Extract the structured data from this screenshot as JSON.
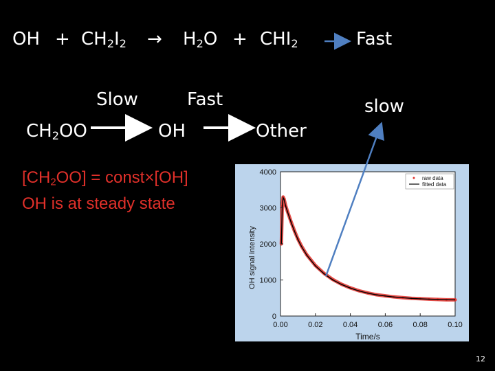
{
  "slide": {
    "reaction1": {
      "lhs_a": "OH",
      "plus1": "+",
      "lhs_b_main": "CH",
      "lhs_b_sub1": "2",
      "lhs_b_mid": "I",
      "lhs_b_sub2": "2",
      "arrow": "→",
      "rhs_a_main": "H",
      "rhs_a_sub": "2",
      "rhs_a_end": "O",
      "plus2": "+",
      "rhs_b": "CHI",
      "rhs_b_sub": "2",
      "rate": "Fast"
    },
    "chain": {
      "reactant_main": "CH",
      "reactant_sub": "2",
      "reactant_end": "OO",
      "step1_label": "Slow",
      "intermediate": "OH",
      "step2_label": "Fast",
      "product": "Other",
      "pointer_label": "slow"
    },
    "notes": {
      "line1_a": "[CH",
      "line1_sub": "2",
      "line1_b": "OO] = const",
      "line1_times": "×",
      "line1_c": "[OH]",
      "line2": "OH is at steady state"
    },
    "page_number": "12"
  },
  "chart_data": {
    "type": "line",
    "xlabel": "Time/s",
    "ylabel": "OH signal intensity",
    "xlim": [
      0.0,
      0.1
    ],
    "ylim": [
      0,
      4000
    ],
    "x_ticks": [
      "0.00",
      "0.02",
      "0.04",
      "0.06",
      "0.08",
      "0.10"
    ],
    "y_ticks": [
      "0",
      "1000",
      "2000",
      "3000",
      "4000"
    ],
    "legend": [
      "raw data",
      "fitted data"
    ],
    "legend_position": "top-right",
    "series": [
      {
        "name": "raw data",
        "color": "#e0302a",
        "x": [
          0.0005,
          0.001,
          0.0015,
          0.002,
          0.003,
          0.004,
          0.006,
          0.008,
          0.01,
          0.012,
          0.015,
          0.02,
          0.025,
          0.03,
          0.035,
          0.04,
          0.045,
          0.05,
          0.055,
          0.06,
          0.065,
          0.07,
          0.075,
          0.08,
          0.085,
          0.09,
          0.095,
          0.1
        ],
        "y": [
          2000,
          3050,
          3300,
          3250,
          3050,
          2900,
          2620,
          2360,
          2130,
          1940,
          1700,
          1400,
          1180,
          1010,
          880,
          780,
          700,
          640,
          590,
          560,
          530,
          510,
          490,
          480,
          470,
          460,
          450,
          450
        ]
      },
      {
        "name": "fitted data",
        "color": "#000000",
        "x": [
          0.0005,
          0.001,
          0.0015,
          0.002,
          0.003,
          0.004,
          0.006,
          0.008,
          0.01,
          0.012,
          0.015,
          0.02,
          0.025,
          0.03,
          0.035,
          0.04,
          0.045,
          0.05,
          0.055,
          0.06,
          0.065,
          0.07,
          0.075,
          0.08,
          0.085,
          0.09,
          0.095,
          0.1
        ],
        "y": [
          2000,
          3050,
          3280,
          3240,
          3040,
          2890,
          2610,
          2350,
          2120,
          1930,
          1690,
          1390,
          1170,
          1000,
          875,
          775,
          695,
          635,
          588,
          555,
          528,
          508,
          490,
          478,
          468,
          460,
          452,
          448
        ]
      }
    ]
  }
}
